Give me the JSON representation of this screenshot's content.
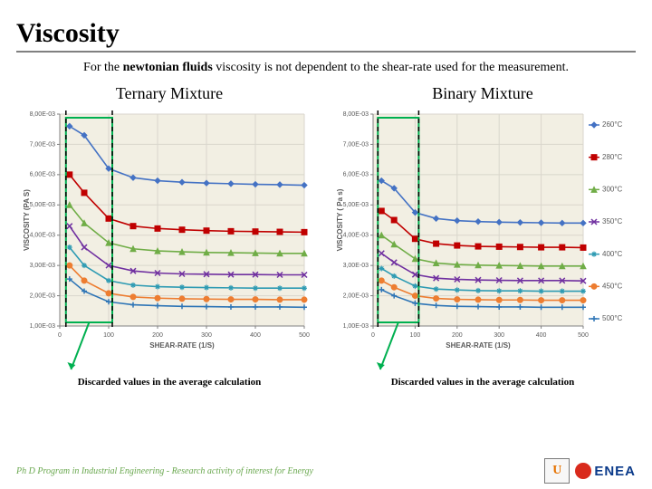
{
  "title": "Viscosity",
  "intro_before": "For the ",
  "intro_bold": "newtonian fluids",
  "intro_after": " viscosity is not dependent to the shear-rate used for the measurement.",
  "left_chart_title": "Ternary Mixture",
  "right_chart_title": "Binary Mixture",
  "discard_note_left": "Discarded values in the average calculation",
  "discard_note_right": "Discarded values in the average calculation",
  "footer_text": "Ph D Program in Industrial Engineering - Research activity of interest for Energy",
  "logo_u": "U",
  "enea_label": "ENEA",
  "axes": {
    "xlabel": "SHEAR-RATE (1/S)",
    "ylabel_left": "VISCOSITY (PA S)",
    "ylabel_right": "VISCOSITY ( Pa s)",
    "x_ticks": [
      0,
      100,
      200,
      300,
      400,
      500
    ],
    "y_ticks_labels": [
      "1,00E-03",
      "2,00E-03",
      "3,00E-03",
      "4,00E-03",
      "5,00E-03",
      "6,00E-03",
      "7,00E-03",
      "8,00E-03"
    ],
    "y_min": 0.001,
    "y_max": 0.008,
    "font_size_tick": 7,
    "font_size_axis": 8,
    "grid_color": "#d9d6cc",
    "plot_bg": "#f2efe3",
    "tick_color": "#808080"
  },
  "legend": {
    "items": [
      {
        "label": "260°C",
        "color": "#4472c4",
        "marker": "diamond"
      },
      {
        "label": "280°C",
        "color": "#c00000",
        "marker": "square"
      },
      {
        "label": "300°C",
        "color": "#70ad47",
        "marker": "triangle"
      },
      {
        "label": "350°C",
        "color": "#7030a0",
        "marker": "x"
      },
      {
        "label": "400°C",
        "color": "#2e9bb3",
        "marker": "star"
      },
      {
        "label": "450°C",
        "color": "#ed7d31",
        "marker": "circle"
      },
      {
        "label": "500°C",
        "color": "#2e75b6",
        "marker": "plus"
      }
    ],
    "font_size": 8
  },
  "series_x": [
    20,
    50,
    100,
    150,
    200,
    250,
    300,
    350,
    400,
    450,
    500
  ],
  "ternary": {
    "260": [
      0.0076,
      0.0073,
      0.0062,
      0.0059,
      0.0058,
      0.00575,
      0.00572,
      0.0057,
      0.00568,
      0.00567,
      0.00565
    ],
    "280": [
      0.006,
      0.0054,
      0.00455,
      0.0043,
      0.00422,
      0.00418,
      0.00415,
      0.00413,
      0.00412,
      0.00411,
      0.0041
    ],
    "300": [
      0.005,
      0.0044,
      0.00375,
      0.00355,
      0.00348,
      0.00345,
      0.00343,
      0.00342,
      0.00341,
      0.0034,
      0.0034
    ],
    "350": [
      0.0043,
      0.0036,
      0.003,
      0.00282,
      0.00275,
      0.00272,
      0.00271,
      0.0027,
      0.0027,
      0.00269,
      0.00269
    ],
    "400": [
      0.0036,
      0.003,
      0.0025,
      0.00235,
      0.0023,
      0.00228,
      0.00227,
      0.00226,
      0.00225,
      0.00225,
      0.00225
    ],
    "450": [
      0.003,
      0.0025,
      0.00208,
      0.00196,
      0.00192,
      0.0019,
      0.00189,
      0.00188,
      0.00188,
      0.00187,
      0.00187
    ],
    "500": [
      0.00255,
      0.00215,
      0.0018,
      0.0017,
      0.00167,
      0.00165,
      0.00164,
      0.00163,
      0.00163,
      0.00163,
      0.00162
    ]
  },
  "binary": {
    "260": [
      0.0058,
      0.00555,
      0.00475,
      0.00455,
      0.00448,
      0.00445,
      0.00443,
      0.00442,
      0.00441,
      0.0044,
      0.0044
    ],
    "280": [
      0.0048,
      0.0045,
      0.00388,
      0.00372,
      0.00366,
      0.00363,
      0.00362,
      0.00361,
      0.0036,
      0.0036,
      0.00359
    ],
    "300": [
      0.004,
      0.0037,
      0.00322,
      0.00308,
      0.00303,
      0.00301,
      0.003,
      0.00299,
      0.00298,
      0.00298,
      0.00298
    ],
    "350": [
      0.0034,
      0.0031,
      0.0027,
      0.00258,
      0.00254,
      0.00252,
      0.00251,
      0.0025,
      0.0025,
      0.0025,
      0.00249
    ],
    "400": [
      0.0029,
      0.00265,
      0.00232,
      0.00222,
      0.00219,
      0.00217,
      0.00216,
      0.00216,
      0.00215,
      0.00215,
      0.00215
    ],
    "450": [
      0.0025,
      0.00228,
      0.002,
      0.00191,
      0.00188,
      0.00187,
      0.00186,
      0.00186,
      0.00185,
      0.00185,
      0.00185
    ],
    "500": [
      0.0022,
      0.002,
      0.00175,
      0.00168,
      0.00165,
      0.00164,
      0.00163,
      0.00163,
      0.00162,
      0.00162,
      0.00162
    ]
  },
  "discard_box": {
    "stroke": "#00b050",
    "stroke_width": 2
  },
  "arrow_color": "#00b050",
  "dash_color": "#000000"
}
